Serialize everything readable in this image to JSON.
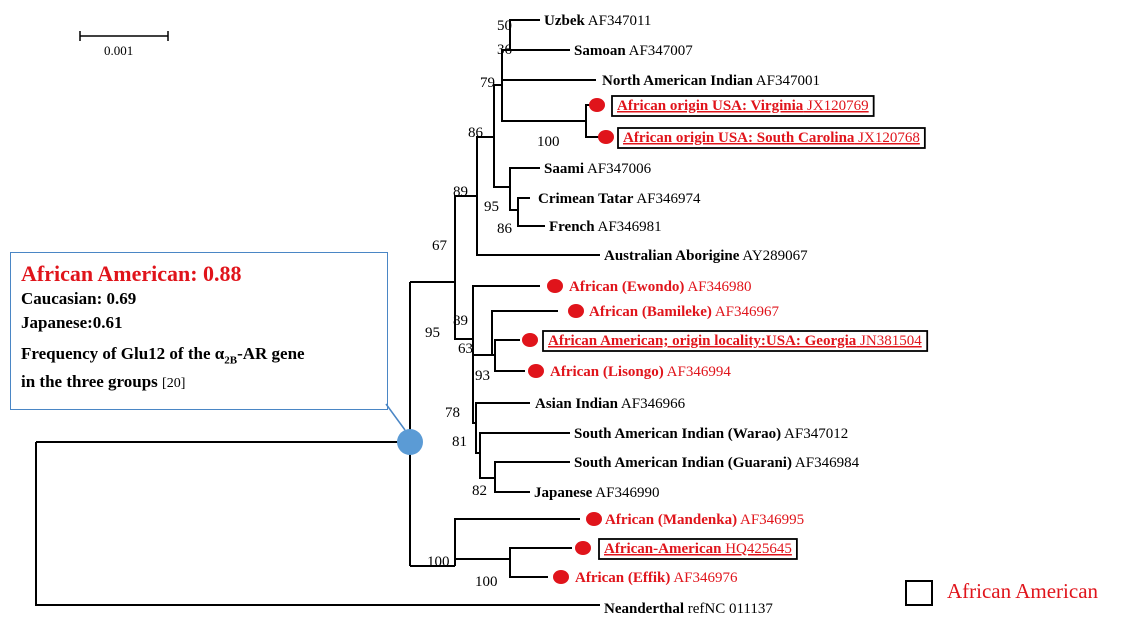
{
  "scale_bar": {
    "label": "0.001"
  },
  "info_box": {
    "title": "African American: 0.88",
    "line_caucasian": "Caucasian: 0.69",
    "line_japanese": "Japanese:0.61",
    "freq_text_a": "Frequency of  Glu12 of the α",
    "freq_subscript": "2B",
    "freq_text_b": "-AR gene",
    "freq_text_c": "in the three groups",
    "freq_ref": "[20]"
  },
  "legend": {
    "label": "African American"
  },
  "colors": {
    "african": "#e0141b",
    "node": "#5b9bd5",
    "box_border": "#4a86c5"
  },
  "bootstrap": [
    "50",
    "36",
    "79",
    "100",
    "86",
    "95",
    "86",
    "89",
    "67",
    "89",
    "63",
    "93",
    "95",
    "78",
    "81",
    "82",
    "100",
    "100"
  ],
  "taxa": [
    {
      "name": "Uzbek",
      "accession": "AF347011",
      "african": false,
      "boxed": false
    },
    {
      "name": "Samoan",
      "accession": "AF347007",
      "african": false,
      "boxed": false
    },
    {
      "name": "North American Indian",
      "accession": "AF347001",
      "african": false,
      "boxed": false
    },
    {
      "name": "African origin USA: Virginia",
      "accession": "JX120769",
      "african": true,
      "boxed": true
    },
    {
      "name": "African origin USA: South Carolina",
      "accession": "JX120768",
      "african": true,
      "boxed": true
    },
    {
      "name": "Saami",
      "accession": "AF347006",
      "african": false,
      "boxed": false
    },
    {
      "name": "Crimean Tatar",
      "accession": "AF346974",
      "african": false,
      "boxed": false
    },
    {
      "name": "French",
      "accession": "AF346981",
      "african": false,
      "boxed": false
    },
    {
      "name": "Australian Aborigine",
      "accession": "AY289067",
      "african": false,
      "boxed": false
    },
    {
      "name": "African (Ewondo)",
      "accession": "AF346980",
      "african": true,
      "boxed": false
    },
    {
      "name": "African (Bamileke)",
      "accession": "AF346967",
      "african": true,
      "boxed": false
    },
    {
      "name": "African American; origin  locality:USA:  Georgia",
      "accession": "JN381504",
      "african": true,
      "boxed": true
    },
    {
      "name": "African (Lisongo)",
      "accession": "AF346994",
      "african": true,
      "boxed": false
    },
    {
      "name": "Asian Indian",
      "accession": "AF346966",
      "african": false,
      "boxed": false
    },
    {
      "name": "South American Indian (Warao)",
      "accession": "AF347012",
      "african": false,
      "boxed": false
    },
    {
      "name": "South American Indian (Guarani)",
      "accession": "AF346984",
      "african": false,
      "boxed": false
    },
    {
      "name": "Japanese",
      "accession": "AF346990",
      "african": false,
      "boxed": false
    },
    {
      "name": "African (Mandenka)",
      "accession": "AF346995",
      "african": true,
      "boxed": false
    },
    {
      "name": "African-American",
      "accession": "HQ425645",
      "african": true,
      "boxed": true
    },
    {
      "name": "African (Effik)",
      "accession": "AF346976",
      "african": true,
      "boxed": false
    },
    {
      "name": "Neanderthal",
      "accession": "refNC 011137",
      "african": false,
      "boxed": false
    }
  ]
}
